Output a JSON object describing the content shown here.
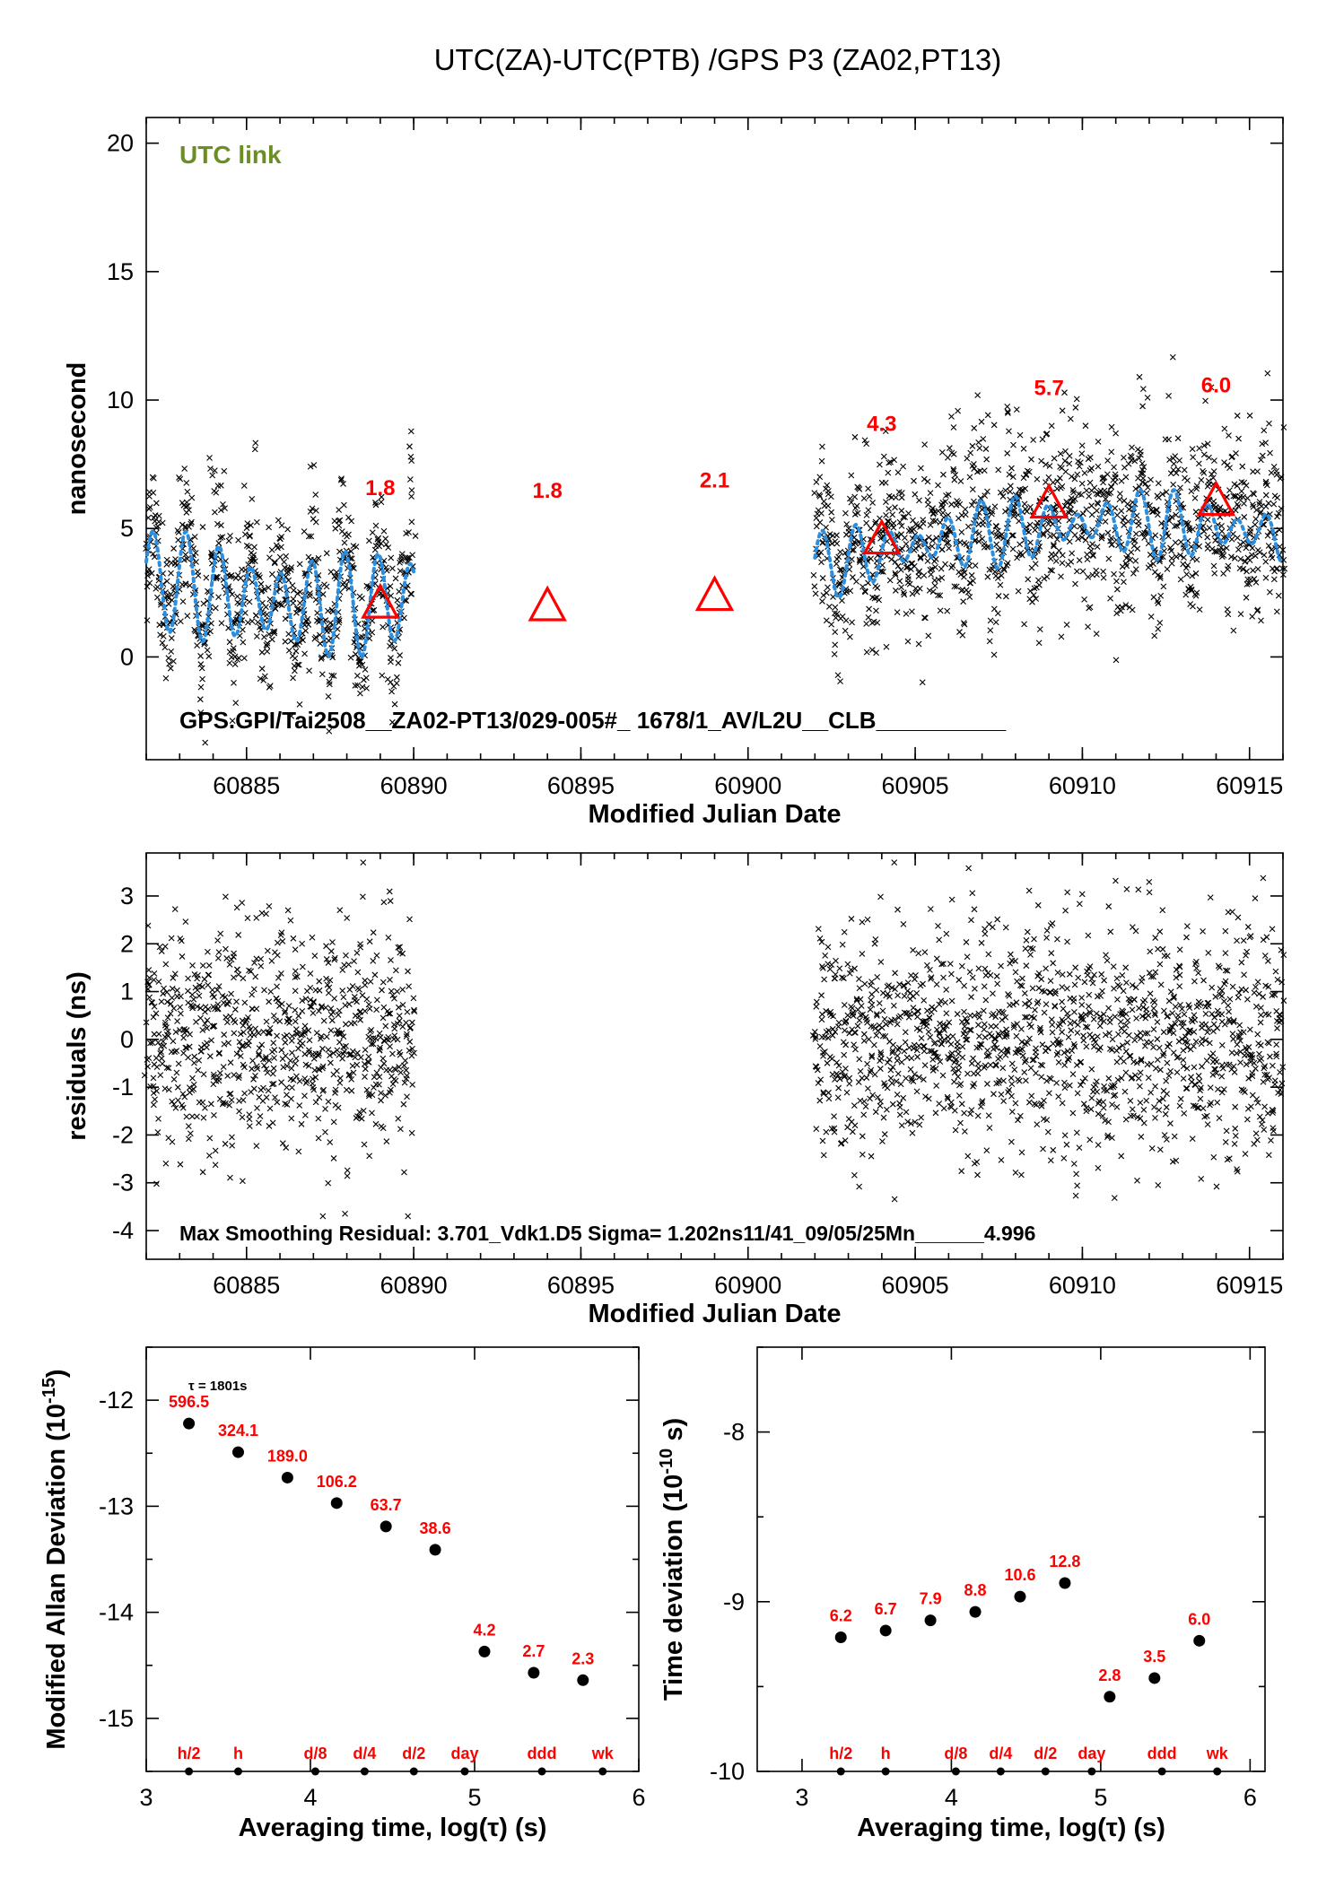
{
  "page_title": "UTC(ZA)-UTC(PTB)  /GPS  P3  (ZA02,PT13)",
  "colors": {
    "black": "#000000",
    "red": "#ff0000",
    "blue_fit": "#2a8fe0",
    "green_label": "#6b8e23"
  },
  "chart_data": [
    {
      "id": "top",
      "type": "scatter",
      "title": "UTC(ZA)-UTC(PTB)  /GPS  P3  (ZA02,PT13)",
      "xlabel": "Modified Julian Date",
      "ylabel": "nanosecond",
      "xlim": [
        60882,
        60916
      ],
      "ylim": [
        -4,
        21
      ],
      "xticks": [
        60885,
        60890,
        60895,
        60900,
        60905,
        60910,
        60915
      ],
      "yticks": [
        0,
        5,
        10,
        15,
        20
      ],
      "badge": "UTC link",
      "footer": "GPS.GPI/Tai2508__ZA02-PT13/029-005#_  1678/1_AV/L2U__CLB__________",
      "scatter_segments": [
        {
          "from": 60882,
          "to": 60890,
          "base": [
            3.2,
            2.0
          ],
          "osc_amp": 1.6,
          "noise": 1.3
        },
        {
          "from": 60902,
          "to": 60916,
          "base": [
            3.5,
            5.2
          ],
          "osc_amp": 0.9,
          "noise": 1.5
        }
      ],
      "triangles": [
        {
          "x": 60889,
          "y": 2.0,
          "label": "1.8"
        },
        {
          "x": 60894,
          "y": 1.9,
          "label": "1.8"
        },
        {
          "x": 60899,
          "y": 2.3,
          "label": "2.1"
        },
        {
          "x": 60904,
          "y": 4.5,
          "label": "4.3"
        },
        {
          "x": 60909,
          "y": 5.9,
          "label": "5.7"
        },
        {
          "x": 60914,
          "y": 6.0,
          "label": "6.0"
        }
      ]
    },
    {
      "id": "residuals",
      "type": "scatter",
      "xlabel": "Modified Julian Date",
      "ylabel": "residuals (ns)",
      "xlim": [
        60882,
        60916
      ],
      "ylim": [
        -4.6,
        3.9
      ],
      "xticks": [
        60885,
        60890,
        60895,
        60900,
        60905,
        60910,
        60915
      ],
      "yticks": [
        -4,
        -3,
        -2,
        -1,
        0,
        1,
        2,
        3
      ],
      "footer": "Max Smoothing Residual: 3.701_Vdk1.D5  Sigma= 1.202ns11/41_09/05/25Mn______4.996",
      "segments": [
        [
          60882,
          60890
        ],
        [
          60902,
          60916
        ]
      ],
      "sigma": 1.202
    },
    {
      "id": "mdev",
      "type": "scatter",
      "xlabel": "Averaging time, log(τ) (s)",
      "ylabel": "Modified Allan Deviation (10^-15)",
      "xlim": [
        3,
        6
      ],
      "ylim": [
        -15.5,
        -11.5
      ],
      "xticks": [
        3,
        4,
        5,
        6
      ],
      "yticks": [
        -12,
        -13,
        -14,
        -15
      ],
      "annotation": "τ = 1801s",
      "x": [
        3.26,
        3.56,
        3.86,
        4.16,
        4.46,
        4.76,
        5.06,
        5.36,
        5.66
      ],
      "y": [
        -12.22,
        -12.49,
        -12.73,
        -12.97,
        -13.19,
        -13.41,
        -14.37,
        -14.57,
        -14.64
      ],
      "labels": [
        "596.5",
        "324.1",
        "189.0",
        "106.2",
        "63.7",
        "38.6",
        "4.2",
        "2.7",
        "2.3"
      ],
      "markers": [
        "h/2",
        "h",
        "d/8",
        "d/4",
        "d/2",
        "day",
        "ddd",
        "wk"
      ],
      "marker_x": [
        3.26,
        3.56,
        4.03,
        4.33,
        4.63,
        4.94,
        5.41,
        5.78
      ]
    },
    {
      "id": "tdev",
      "type": "scatter",
      "xlabel": "Averaging time, log(τ) (s)",
      "ylabel": "Time deviation (10^-10 s)",
      "xlim": [
        2.7,
        6.1
      ],
      "ylim": [
        -10.0,
        -7.5
      ],
      "xticks": [
        3,
        4,
        5,
        6
      ],
      "yticks": [
        -8,
        -9,
        -10
      ],
      "x": [
        3.26,
        3.56,
        3.86,
        4.16,
        4.46,
        4.76,
        5.06,
        5.36,
        5.66
      ],
      "y": [
        -9.21,
        -9.17,
        -9.11,
        -9.06,
        -8.97,
        -8.89,
        -9.56,
        -9.45,
        -9.23
      ],
      "labels": [
        "6.2",
        "6.7",
        "7.9",
        "8.8",
        "10.6",
        "12.8",
        "2.8",
        "3.5",
        "6.0"
      ],
      "markers": [
        "h/2",
        "h",
        "d/8",
        "d/4",
        "d/2",
        "day",
        "ddd",
        "wk"
      ],
      "marker_x": [
        3.26,
        3.56,
        4.03,
        4.33,
        4.63,
        4.94,
        5.41,
        5.78
      ]
    }
  ]
}
